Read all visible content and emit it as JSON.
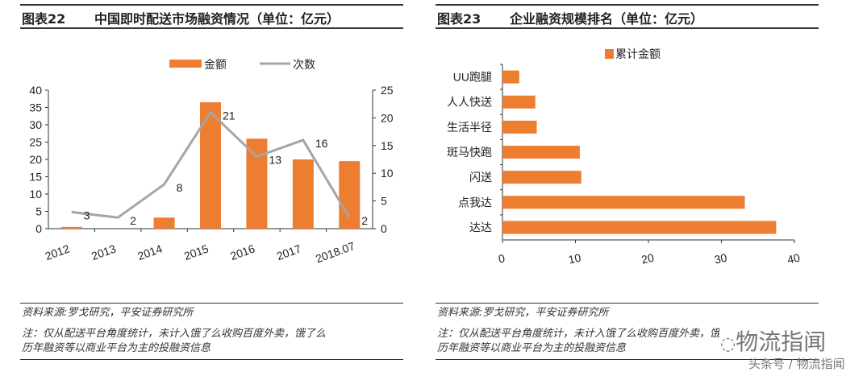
{
  "left_panel": {
    "figure_no": "图表22",
    "title": "中国即时配送市场融资情况（单位：亿元）",
    "source": "资料来源:罗戈研究，平安证券研究所",
    "note_line1": "注：仅从配送平台角度统计，未计入饿了么收购百度外卖，饿了么",
    "note_line2": "历年融资等以商业平台为主的投融资信息"
  },
  "right_panel": {
    "figure_no": "图表23",
    "title": "企业融资规模排名（单位：亿元）",
    "source": "资料来源:罗戈研究，平安证券研究所",
    "note_line1": "注：仅从配送平台角度统计，未计入饿了么收购百度外卖，饿了么",
    "note_line2": "历年融资等以商业平台为主的投融资信息"
  },
  "watermark": {
    "logo_text": "物流指闻",
    "credit": "头条号 / 物流指闻"
  },
  "colors": {
    "bar": "#ED7D31",
    "line": "#A5A5A5",
    "axis": "#333333"
  },
  "chart_data": [
    {
      "type": "bar+line",
      "categories": [
        "2012",
        "2013",
        "2014",
        "2015",
        "2016",
        "2017",
        "2018.07"
      ],
      "series": [
        {
          "name": "金额",
          "type": "bar",
          "axis": "left",
          "values": [
            0.5,
            0,
            3.2,
            36.5,
            26,
            20,
            19.5
          ]
        },
        {
          "name": "次数",
          "type": "line",
          "axis": "right",
          "values": [
            3,
            2,
            8,
            21,
            13,
            16,
            2
          ],
          "data_labels": [
            "3",
            "2",
            "8",
            "21",
            "13",
            "16",
            "2"
          ]
        }
      ],
      "y_left": {
        "lim": [
          0,
          40
        ],
        "ticks": [
          "0",
          "5",
          "10",
          "15",
          "20",
          "25",
          "30",
          "35",
          "40"
        ]
      },
      "y_right": {
        "lim": [
          0,
          25
        ],
        "ticks": [
          "0",
          "5",
          "10",
          "15",
          "20",
          "25"
        ]
      },
      "legend": "top",
      "grid": false
    },
    {
      "type": "bar",
      "orientation": "horizontal",
      "categories": [
        "UU跑腿",
        "人人快送",
        "生活半径",
        "斑马快跑",
        "闪送",
        "点我达",
        "达达"
      ],
      "series": [
        {
          "name": "累计金额",
          "values": [
            2.3,
            4.5,
            4.7,
            10.6,
            10.8,
            33.2,
            37.5
          ]
        }
      ],
      "xlim": [
        0,
        40
      ],
      "x_ticks": [
        "0",
        "10",
        "20",
        "30",
        "40"
      ],
      "legend": "top",
      "grid": false
    }
  ]
}
